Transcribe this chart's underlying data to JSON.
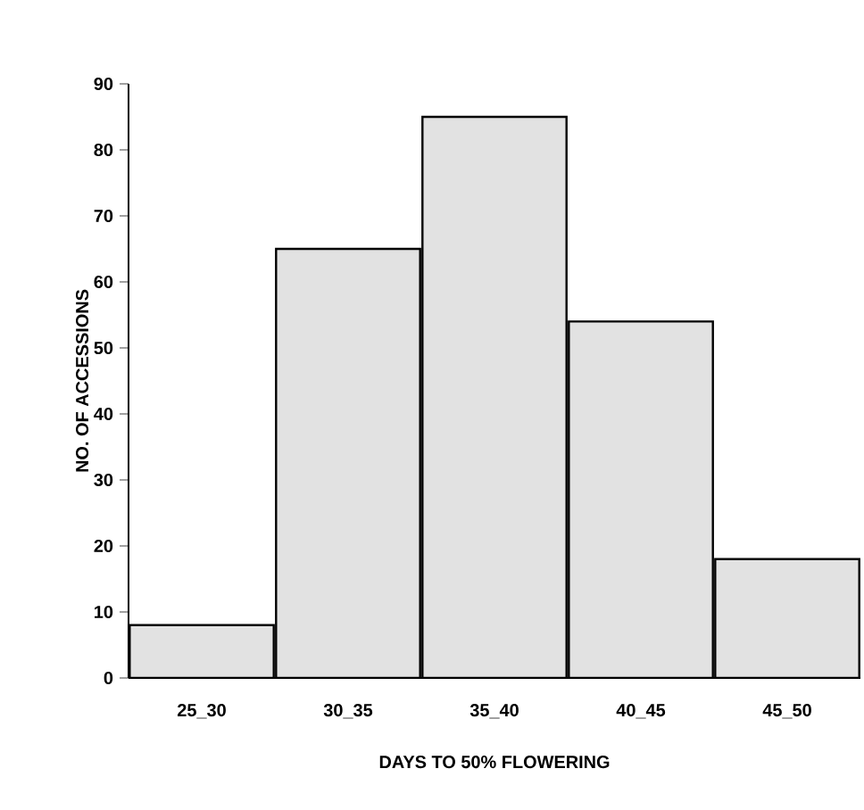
{
  "chart_data": {
    "type": "bar",
    "xlabel": "DAYS TO 50% FLOWERING",
    "ylabel": "NO. OF ACCESSIONS",
    "categories": [
      "25_30",
      "30_35",
      "35_40",
      "40_45",
      "45_50"
    ],
    "values": [
      8,
      65,
      85,
      54,
      18
    ],
    "color": "#e2e2e2",
    "ylim": [
      0,
      90
    ],
    "yticks": [
      0,
      10,
      20,
      30,
      40,
      50,
      60,
      70,
      80,
      90
    ],
    "grid": false
  }
}
